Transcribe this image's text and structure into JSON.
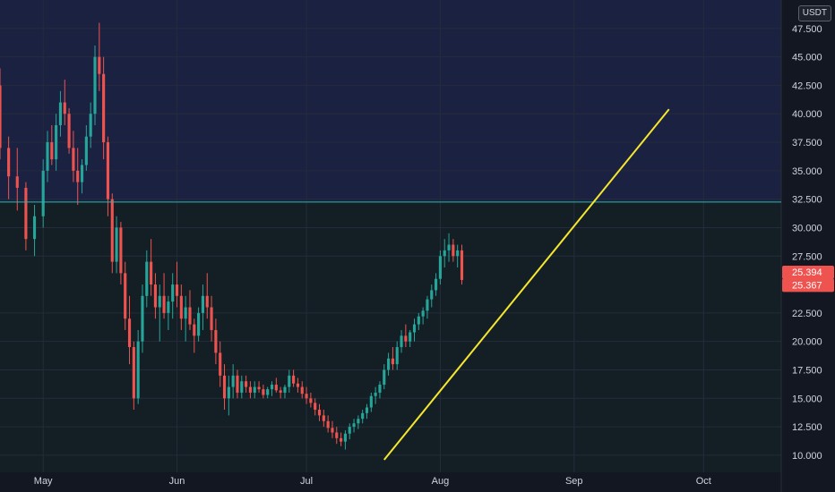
{
  "axis": {
    "currency": "USDT",
    "price_ticks": [
      "47.500",
      "45.000",
      "42.500",
      "40.000",
      "37.500",
      "35.000",
      "32.500",
      "30.000",
      "27.500",
      "22.500",
      "20.000",
      "17.500",
      "15.000",
      "12.500",
      "10.000"
    ],
    "date_ticks": [
      "May",
      "Jun",
      "Jul",
      "Aug",
      "Sep",
      "Oct"
    ]
  },
  "price_labels": {
    "current": "25.394",
    "previous": "25.367"
  },
  "colors": {
    "background": "#131722",
    "upper_zone": "#1b2140",
    "lower_zone": "#131f24",
    "bull": "#26a69a",
    "bear": "#ef5350",
    "trendline": "#f5e62e",
    "horizontal_line": "#2bb8a6",
    "grid": "#262b3b",
    "axis_text": "#d1d4dc"
  },
  "chart_data": {
    "type": "candlestick",
    "x_unit": "days since May 1",
    "y_unit": "USDT",
    "ylim": [
      8.5,
      50
    ],
    "xlim": [
      -10,
      171
    ],
    "horizontal_level": 32.25,
    "trendline": {
      "from": [
        79,
        9.6
      ],
      "to": [
        145,
        40.4
      ]
    },
    "candles": [
      [
        -10,
        42.5,
        44.0,
        36.0,
        37.0
      ],
      [
        -8,
        37.0,
        38.0,
        32.5,
        34.5
      ],
      [
        -6,
        34.5,
        37.0,
        31.5,
        33.5
      ],
      [
        -4,
        33.5,
        34.0,
        28.0,
        29.0
      ],
      [
        -2,
        29.0,
        32.0,
        27.5,
        31.0
      ],
      [
        0,
        31.0,
        36.0,
        30.0,
        35.0
      ],
      [
        1,
        35.0,
        38.5,
        34.0,
        37.5
      ],
      [
        2,
        37.5,
        39.0,
        35.5,
        36.0
      ],
      [
        3,
        36.0,
        40.0,
        35.0,
        39.0
      ],
      [
        4,
        39.0,
        42.0,
        38.0,
        41.0
      ],
      [
        5,
        41.0,
        43.0,
        39.0,
        40.0
      ],
      [
        6,
        40.0,
        40.5,
        36.5,
        37.0
      ],
      [
        7,
        37.0,
        38.5,
        34.0,
        35.0
      ],
      [
        8,
        35.0,
        37.0,
        32.0,
        34.0
      ],
      [
        9,
        34.0,
        36.0,
        33.0,
        35.5
      ],
      [
        10,
        35.5,
        39.0,
        35.0,
        38.0
      ],
      [
        11,
        38.0,
        41.0,
        37.0,
        40.0
      ],
      [
        12,
        40.0,
        46.0,
        39.0,
        45.0
      ],
      [
        13,
        45.0,
        48.0,
        42.0,
        43.5
      ],
      [
        14,
        43.5,
        45.0,
        36.0,
        37.5
      ],
      [
        15,
        37.5,
        38.0,
        31.0,
        32.5
      ],
      [
        16,
        32.5,
        33.0,
        26.0,
        27.0
      ],
      [
        17,
        27.0,
        31.0,
        26.0,
        30.0
      ],
      [
        18,
        30.0,
        30.5,
        25.0,
        26.0
      ],
      [
        19,
        26.0,
        27.0,
        21.0,
        22.0
      ],
      [
        20,
        22.0,
        24.0,
        18.0,
        19.5
      ],
      [
        21,
        19.5,
        20.0,
        14.0,
        15.0
      ],
      [
        22,
        15.0,
        21.0,
        14.5,
        20.0
      ],
      [
        23,
        20.0,
        25.0,
        19.0,
        24.0
      ],
      [
        24,
        24.0,
        28.0,
        23.0,
        27.0
      ],
      [
        25,
        27.0,
        29.0,
        24.0,
        25.0
      ],
      [
        26,
        25.0,
        26.0,
        22.0,
        23.0
      ],
      [
        27,
        23.0,
        25.0,
        20.0,
        24.0
      ],
      [
        28,
        24.0,
        26.0,
        22.0,
        22.5
      ],
      [
        29,
        22.5,
        24.0,
        21.0,
        23.5
      ],
      [
        30,
        23.5,
        26.0,
        22.0,
        25.0
      ],
      [
        31,
        25.0,
        27.0,
        23.0,
        24.0
      ],
      [
        32,
        24.0,
        25.0,
        21.0,
        22.0
      ],
      [
        33,
        22.0,
        24.0,
        20.0,
        23.0
      ],
      [
        34,
        23.0,
        24.5,
        21.0,
        21.5
      ],
      [
        35,
        21.5,
        22.0,
        19.0,
        20.5
      ],
      [
        36,
        20.5,
        23.0,
        20.0,
        22.5
      ],
      [
        37,
        22.5,
        25.0,
        21.0,
        24.0
      ],
      [
        38,
        24.0,
        26.0,
        22.0,
        23.0
      ],
      [
        39,
        23.0,
        24.0,
        20.0,
        21.0
      ],
      [
        40,
        21.0,
        22.0,
        18.0,
        19.0
      ],
      [
        41,
        19.0,
        20.0,
        16.0,
        17.0
      ],
      [
        42,
        17.0,
        18.0,
        14.0,
        15.0
      ],
      [
        43,
        15.0,
        17.0,
        13.5,
        16.0
      ],
      [
        44,
        16.0,
        18.0,
        15.0,
        17.0
      ],
      [
        45,
        17.0,
        17.5,
        15.0,
        15.5
      ],
      [
        46,
        15.5,
        17.0,
        15.0,
        16.5
      ],
      [
        47,
        16.5,
        17.0,
        15.5,
        16.0
      ],
      [
        48,
        16.0,
        16.5,
        15.0,
        15.5
      ],
      [
        49,
        15.5,
        16.5,
        15.0,
        16.0
      ],
      [
        50,
        16.0,
        16.5,
        15.5,
        15.8
      ],
      [
        51,
        15.8,
        16.2,
        15.0,
        15.3
      ],
      [
        52,
        15.3,
        16.0,
        15.0,
        15.8
      ],
      [
        53,
        15.8,
        16.5,
        15.2,
        16.2
      ],
      [
        54,
        16.2,
        16.8,
        15.5,
        15.7
      ],
      [
        55,
        15.7,
        16.0,
        15.0,
        15.5
      ],
      [
        56,
        15.5,
        16.2,
        15.0,
        16.0
      ],
      [
        57,
        16.0,
        17.5,
        15.5,
        17.0
      ],
      [
        58,
        17.0,
        17.5,
        16.0,
        16.3
      ],
      [
        59,
        16.3,
        16.8,
        15.5,
        16.0
      ],
      [
        60,
        16.0,
        16.5,
        15.0,
        15.4
      ],
      [
        61,
        15.4,
        16.0,
        14.5,
        15.0
      ],
      [
        62,
        15.0,
        15.5,
        14.2,
        14.6
      ],
      [
        63,
        14.6,
        15.0,
        13.5,
        14.0
      ],
      [
        64,
        14.0,
        14.5,
        13.0,
        13.5
      ],
      [
        65,
        13.5,
        14.0,
        12.5,
        13.0
      ],
      [
        66,
        13.0,
        13.5,
        12.0,
        12.4
      ],
      [
        67,
        12.4,
        13.0,
        11.5,
        12.0
      ],
      [
        68,
        12.0,
        12.5,
        11.0,
        11.5
      ],
      [
        69,
        11.5,
        12.0,
        10.8,
        11.2
      ],
      [
        70,
        11.2,
        12.2,
        10.5,
        11.9
      ],
      [
        71,
        11.9,
        12.8,
        11.4,
        12.5
      ],
      [
        72,
        12.5,
        13.2,
        12.0,
        12.8
      ],
      [
        73,
        12.8,
        13.5,
        12.3,
        13.2
      ],
      [
        74,
        13.2,
        14.0,
        12.8,
        13.7
      ],
      [
        75,
        13.7,
        14.5,
        13.2,
        14.2
      ],
      [
        76,
        14.2,
        15.5,
        13.8,
        15.2
      ],
      [
        77,
        15.2,
        16.0,
        14.5,
        15.5
      ],
      [
        78,
        15.5,
        16.5,
        15.0,
        16.2
      ],
      [
        79,
        16.2,
        18.0,
        15.8,
        17.5
      ],
      [
        80,
        17.5,
        19.0,
        17.0,
        18.5
      ],
      [
        81,
        18.5,
        19.5,
        17.5,
        18.0
      ],
      [
        82,
        18.0,
        20.0,
        17.5,
        19.5
      ],
      [
        83,
        19.5,
        21.0,
        19.0,
        20.5
      ],
      [
        84,
        20.5,
        21.5,
        19.5,
        20.0
      ],
      [
        85,
        20.0,
        21.0,
        19.5,
        20.8
      ],
      [
        86,
        20.8,
        22.0,
        20.0,
        21.5
      ],
      [
        87,
        21.5,
        22.5,
        21.0,
        22.2
      ],
      [
        88,
        22.2,
        23.0,
        21.5,
        22.7
      ],
      [
        89,
        22.7,
        24.0,
        22.0,
        23.7
      ],
      [
        90,
        23.7,
        25.0,
        23.0,
        24.5
      ],
      [
        91,
        24.5,
        26.0,
        24.0,
        25.5
      ],
      [
        92,
        25.5,
        28.0,
        25.0,
        27.5
      ],
      [
        93,
        27.5,
        29.0,
        26.5,
        28.0
      ],
      [
        94,
        28.0,
        29.5,
        27.0,
        28.5
      ],
      [
        95,
        28.5,
        29.0,
        27.0,
        27.5
      ],
      [
        96,
        27.5,
        28.5,
        26.5,
        28.0
      ],
      [
        97,
        28.0,
        28.5,
        25.0,
        25.4
      ]
    ]
  }
}
